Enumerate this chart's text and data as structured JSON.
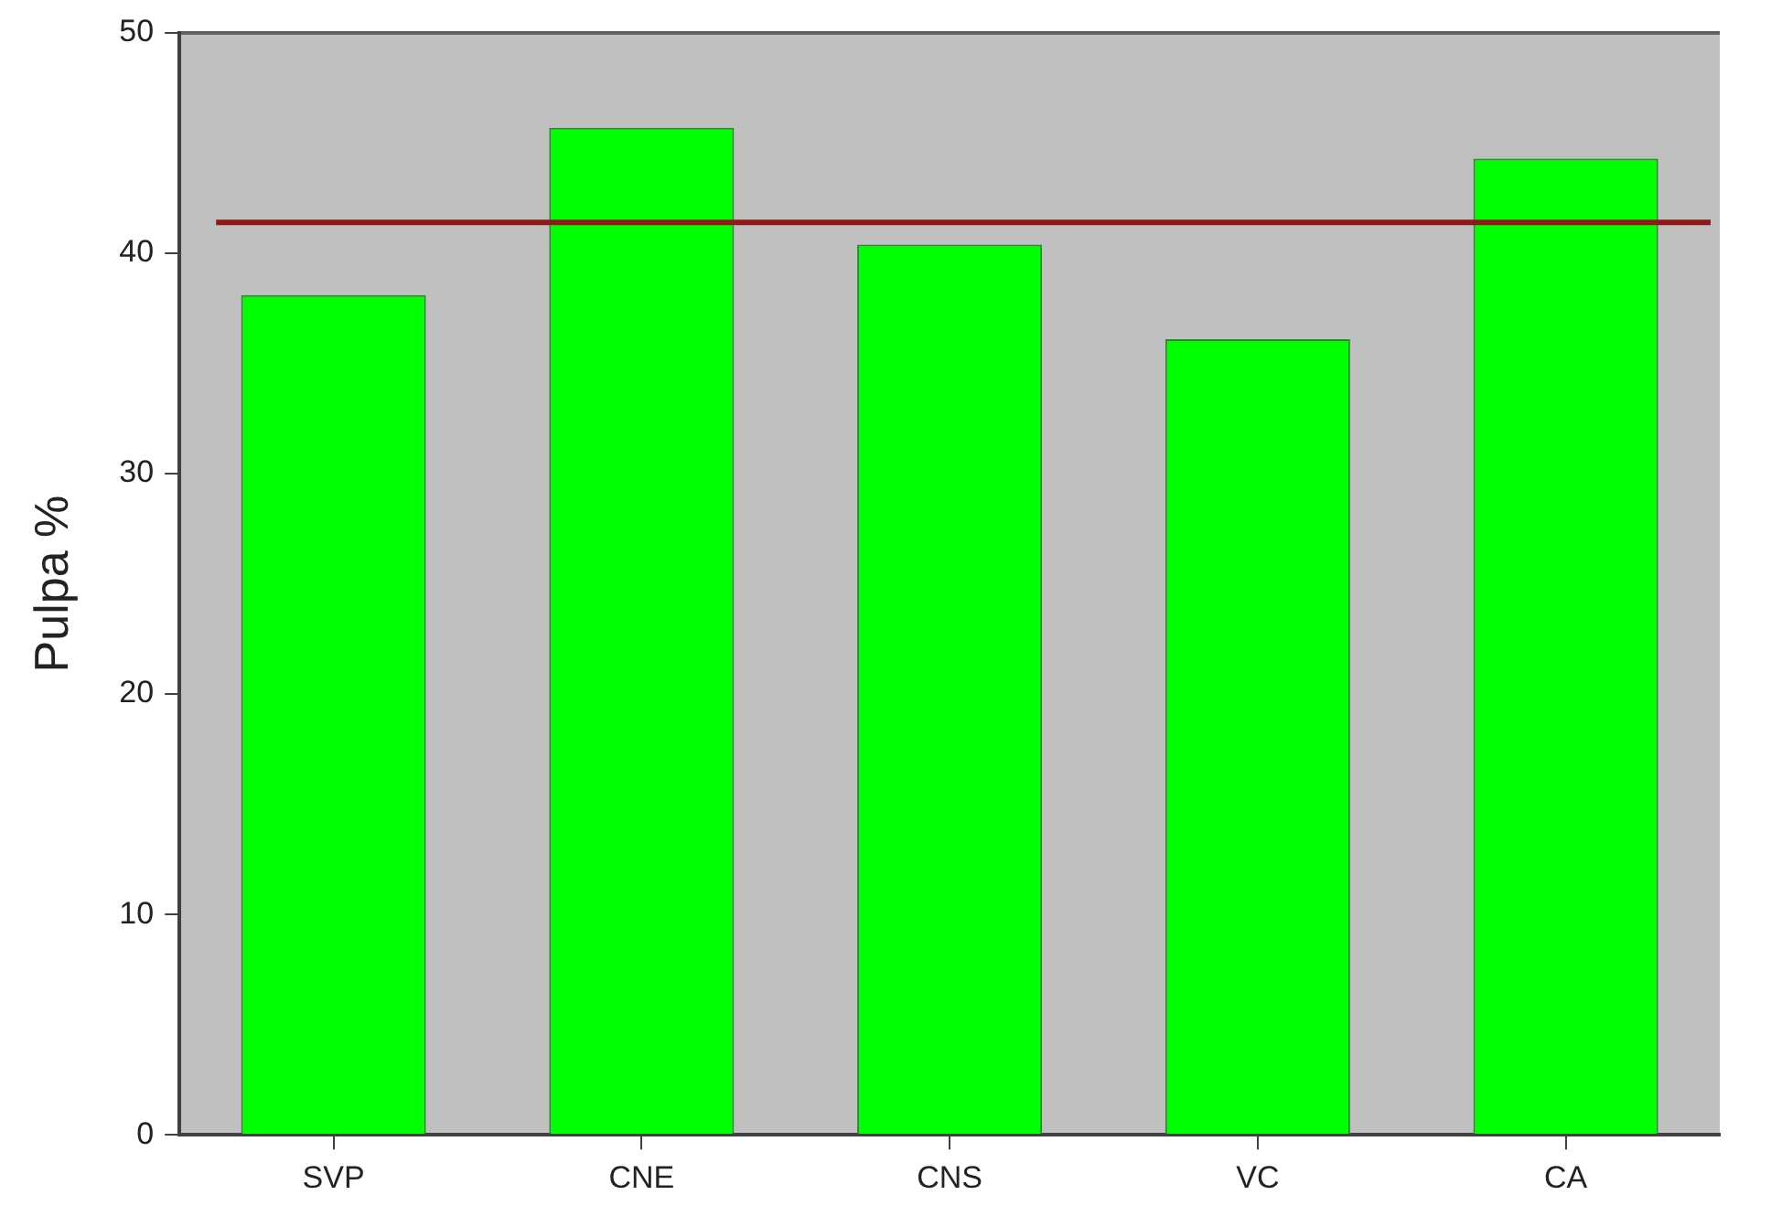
{
  "chart_data": {
    "type": "bar",
    "ylabel": "Pulpa %",
    "categories": [
      "SVP",
      "CNE",
      "CNS",
      "VC",
      "CA"
    ],
    "values": [
      38.1,
      45.7,
      40.4,
      36.1,
      44.3
    ],
    "color": "#00ff00",
    "ylim": [
      0,
      50
    ],
    "yticks": [
      0,
      10,
      20,
      30,
      40,
      50
    ],
    "grid": false,
    "legend": false,
    "ref_lines": [
      {
        "axis": "y",
        "value": 41.4,
        "color": "#8b1a1a"
      }
    ]
  }
}
